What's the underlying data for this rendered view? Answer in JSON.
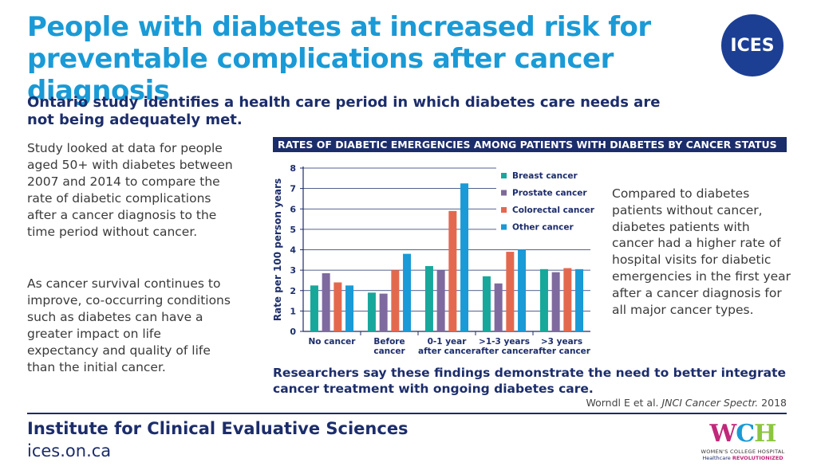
{
  "header": {
    "title": "People with diabetes at increased risk for preventable complications after cancer diagnosis",
    "logo_text": "ICES",
    "subtitle": "Ontario study identifies a health care period in which diabetes care needs are not being adequately met."
  },
  "left_column": {
    "paragraph1": "Study looked at data for people aged 50+ with diabetes between 2007 and 2014 to compare the rate of diabetic complications after a cancer diagnosis to the time period without cancer.",
    "paragraph2": "As cancer survival continues to improve, co-occurring conditions such as diabetes can have a greater impact on life expectancy and quality of life than the initial cancer."
  },
  "right_column": {
    "paragraph": "Compared to diabetes patients without cancer, diabetes patients with cancer had a higher rate of hospital visits for diabetic emergencies in the first year after a cancer diagnosis for all major cancer types."
  },
  "conclusion": "Researchers say these findings demonstrate the need to better integrate cancer treatment with ongoing diabetes care.",
  "citation": {
    "authors": "Worndl E et al. ",
    "journal": "JNCI Cancer Spectr.",
    "year": " 2018"
  },
  "footer": {
    "org_name": "Institute for Clinical Evaluative Sciences",
    "url": "ices.on.ca",
    "partner_logo": {
      "mark_w": "W",
      "mark_c": "C",
      "mark_h": "H",
      "line1": "WOMEN'S COLLEGE HOSPITAL",
      "line2a": "Healthcare ",
      "line2b": "REVOLUTIONIZED"
    }
  },
  "colors": {
    "title": "#1a9ad6",
    "navy": "#1c2d6b",
    "breast": "#17a89b",
    "prostate": "#7e6a9e",
    "colorectal": "#e3694e",
    "other": "#1a9ad6"
  },
  "chart_data": {
    "type": "bar",
    "title": "RATES OF DIABETIC EMERGENCIES AMONG PATIENTS WITH DIABETES BY CANCER STATUS",
    "ylabel": "Rate per 100 person years",
    "ylim": [
      0,
      8
    ],
    "yticks": [
      0,
      1,
      2,
      3,
      4,
      5,
      6,
      7,
      8
    ],
    "grid": true,
    "legend_position": "top-right",
    "categories": [
      [
        "No cancer"
      ],
      [
        "Before",
        "cancer"
      ],
      [
        "0-1 year",
        "after cancer"
      ],
      [
        ">1-3 years",
        "after cancer"
      ],
      [
        ">3 years",
        "after cancer"
      ]
    ],
    "series": [
      {
        "name": "Breast cancer",
        "color": "#17a89b",
        "values": [
          2.25,
          1.9,
          3.2,
          2.7,
          3.05
        ]
      },
      {
        "name": "Prostate cancer",
        "color": "#7e6a9e",
        "values": [
          2.85,
          1.85,
          3.0,
          2.35,
          2.9
        ]
      },
      {
        "name": "Colorectal cancer",
        "color": "#e3694e",
        "values": [
          2.4,
          3.0,
          5.9,
          3.9,
          3.1
        ]
      },
      {
        "name": "Other cancer",
        "color": "#1a9ad6",
        "values": [
          2.25,
          3.8,
          7.25,
          4.0,
          3.05
        ]
      }
    ]
  }
}
